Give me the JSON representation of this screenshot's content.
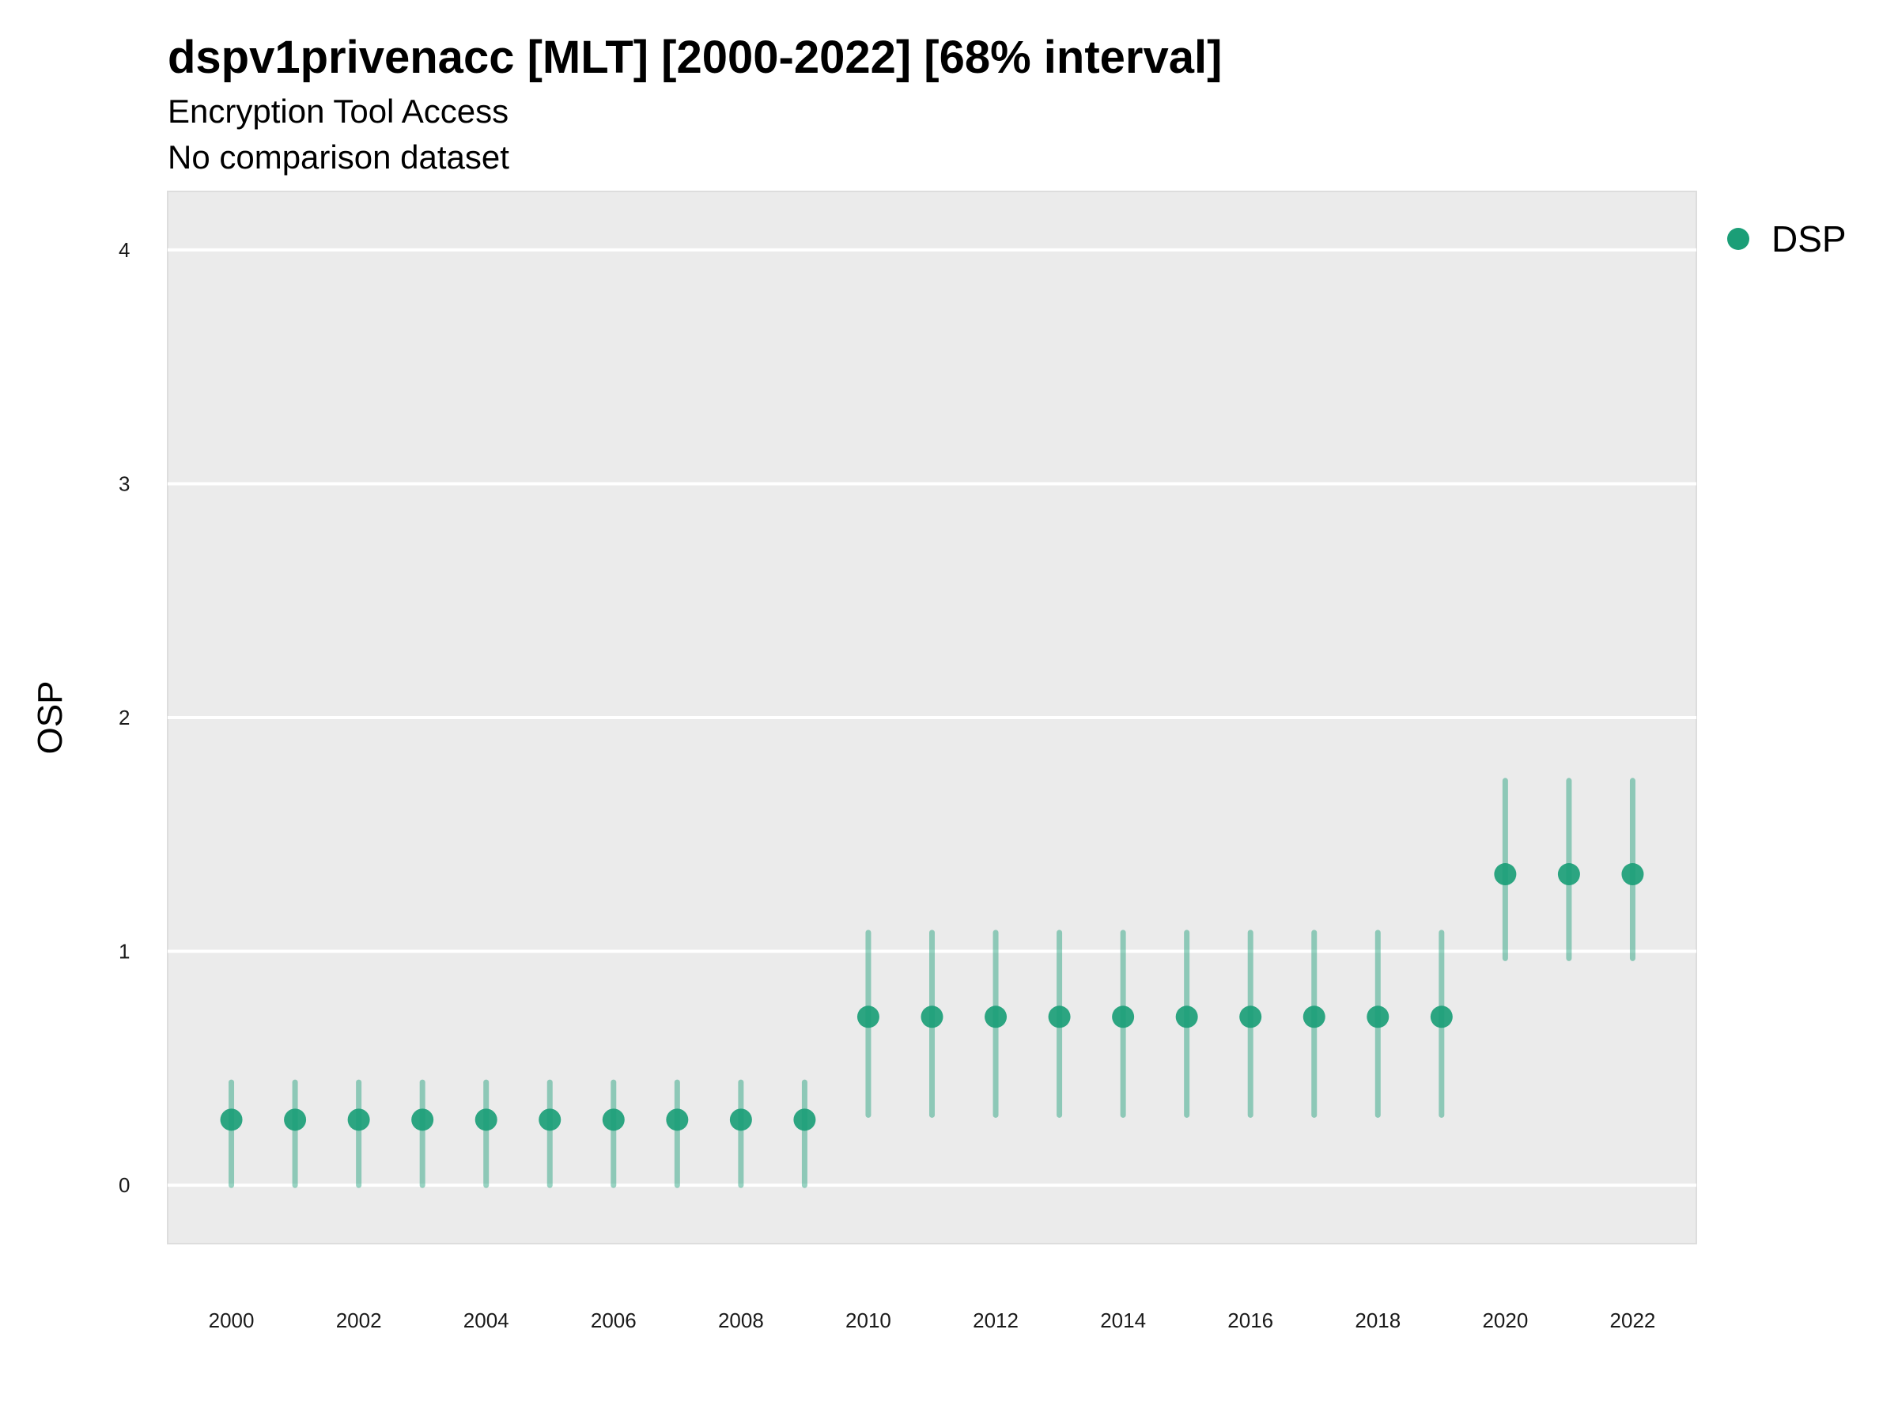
{
  "chart_data": {
    "type": "scatter",
    "title": "dspv1privenacc [MLT] [2000-2022] [68% interval]",
    "subtitle": "Encryption Tool Access",
    "subtitle2": "No comparison dataset",
    "ylabel": "OSP",
    "xlabel": "",
    "ylim": [
      -0.25,
      4.25
    ],
    "yticks": [
      "0",
      "1",
      "2",
      "3",
      "4"
    ],
    "xticks": [
      "2000",
      "2002",
      "2004",
      "2006",
      "2008",
      "2010",
      "2012",
      "2014",
      "2016",
      "2018",
      "2020",
      "2022"
    ],
    "grid": true,
    "legend_position": "right",
    "series": [
      {
        "name": "DSP",
        "color": "#1b9e77",
        "x": [
          2000,
          2001,
          2002,
          2003,
          2004,
          2005,
          2006,
          2007,
          2008,
          2009,
          2010,
          2011,
          2012,
          2013,
          2014,
          2015,
          2016,
          2017,
          2018,
          2019,
          2020,
          2021,
          2022
        ],
        "y": [
          0.28,
          0.28,
          0.28,
          0.28,
          0.28,
          0.28,
          0.28,
          0.28,
          0.28,
          0.28,
          0.72,
          0.72,
          0.72,
          0.72,
          0.72,
          0.72,
          0.72,
          0.72,
          0.72,
          0.72,
          1.33,
          1.33,
          1.33
        ],
        "lower": [
          0.0,
          0.0,
          0.0,
          0.0,
          0.0,
          0.0,
          0.0,
          0.0,
          0.0,
          0.0,
          0.3,
          0.3,
          0.3,
          0.3,
          0.3,
          0.3,
          0.3,
          0.3,
          0.3,
          0.3,
          0.97,
          0.97,
          0.97
        ],
        "upper": [
          0.44,
          0.44,
          0.44,
          0.44,
          0.44,
          0.44,
          0.44,
          0.44,
          0.44,
          0.44,
          1.08,
          1.08,
          1.08,
          1.08,
          1.08,
          1.08,
          1.08,
          1.08,
          1.08,
          1.08,
          1.73,
          1.73,
          1.73
        ]
      }
    ]
  }
}
